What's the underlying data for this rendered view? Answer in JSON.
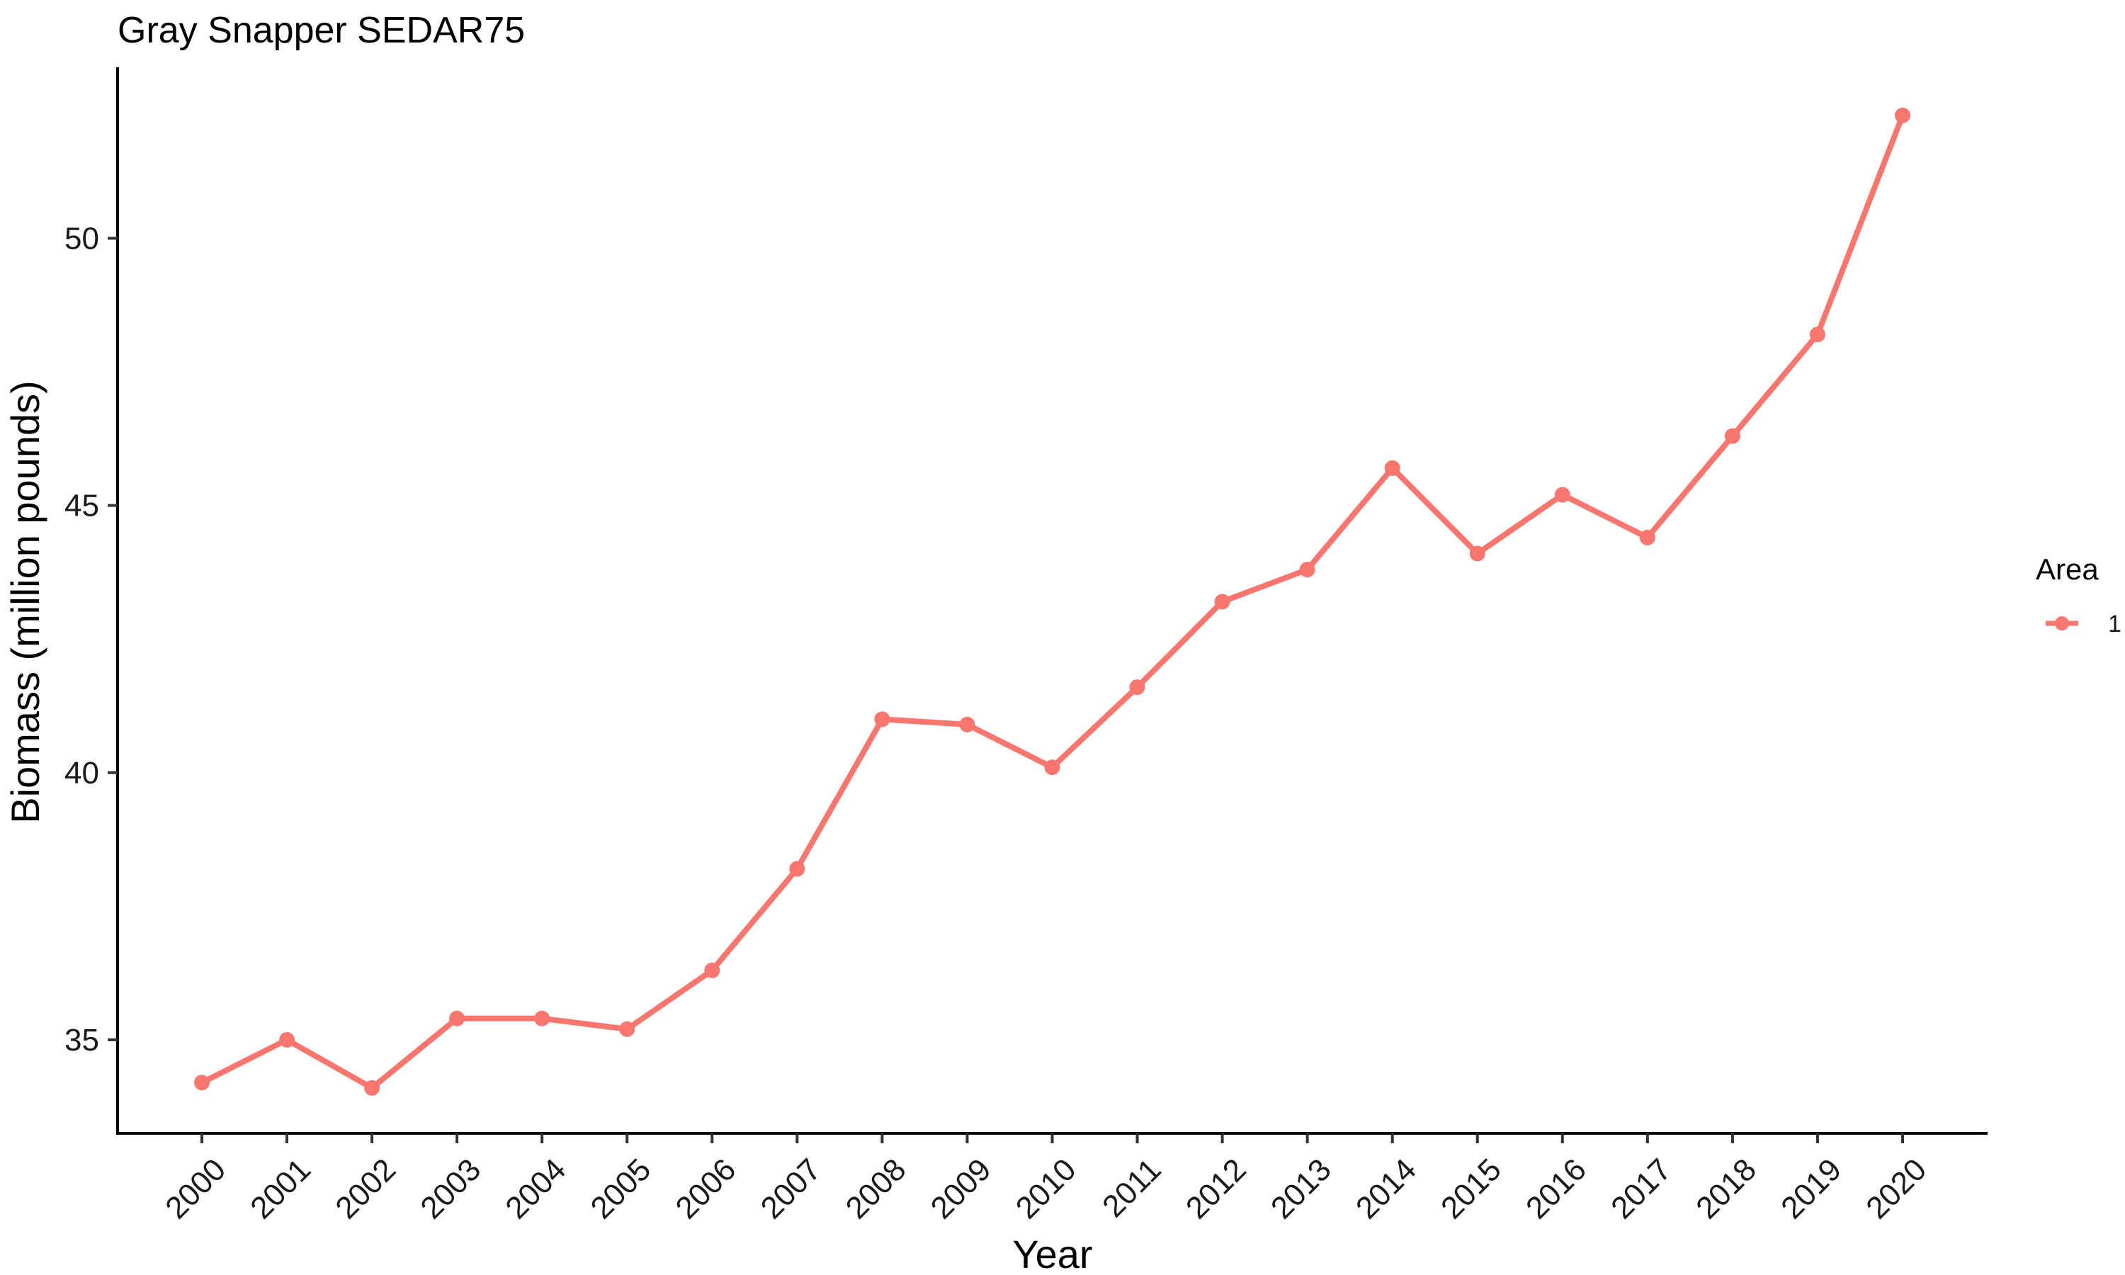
{
  "chart_data": {
    "type": "line",
    "title": "Gray Snapper SEDAR75",
    "xlabel": "Year",
    "ylabel": "Biomass (million pounds)",
    "categories": [
      "2000",
      "2001",
      "2002",
      "2003",
      "2004",
      "2005",
      "2006",
      "2007",
      "2008",
      "2009",
      "2010",
      "2011",
      "2012",
      "2013",
      "2014",
      "2015",
      "2016",
      "2017",
      "2018",
      "2019",
      "2020"
    ],
    "series": [
      {
        "name": "1",
        "color": "#F8766D",
        "values": [
          34.2,
          35.0,
          34.1,
          35.4,
          35.4,
          35.2,
          36.3,
          38.2,
          41.0,
          40.9,
          40.1,
          41.6,
          43.2,
          43.8,
          45.7,
          44.1,
          45.2,
          44.4,
          46.3,
          48.2,
          52.3
        ]
      }
    ],
    "ylim": [
      33.25,
      53.2
    ],
    "yticks": [
      35,
      40,
      45,
      50
    ],
    "legend": {
      "title": "Area",
      "placement": "right"
    },
    "grid": false
  }
}
